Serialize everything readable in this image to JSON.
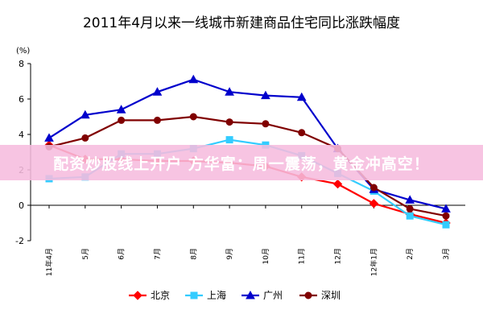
{
  "chart_data": {
    "type": "line",
    "title": "2011年4月以来一线城市新建商品住宅同比涨跌幅度",
    "unit_label": "(%)",
    "categories": [
      "11年4月",
      "5月",
      "6月",
      "7月",
      "8月",
      "9月",
      "10月",
      "11月",
      "12月",
      "12年1月",
      "2月",
      "3月"
    ],
    "ylim": [
      -2,
      8
    ],
    "yticks": [
      -2,
      0,
      2,
      4,
      6,
      8
    ],
    "grid": false,
    "legend_position": "bottom",
    "series": [
      {
        "name": "北京",
        "color": "#ff0000",
        "marker": "diamond",
        "values": [
          3.4,
          2.6,
          2.6,
          2.5,
          2.5,
          2.4,
          2.2,
          1.6,
          1.2,
          0.1,
          -0.5,
          -1.0
        ]
      },
      {
        "name": "上海",
        "color": "#33ccff",
        "marker": "square",
        "values": [
          1.5,
          1.6,
          2.9,
          2.9,
          3.2,
          3.7,
          3.4,
          2.8,
          1.8,
          0.8,
          -0.6,
          -1.1
        ]
      },
      {
        "name": "广州",
        "color": "#0000cc",
        "marker": "triangle",
        "values": [
          3.8,
          5.1,
          5.4,
          6.4,
          7.1,
          6.4,
          6.2,
          6.1,
          3.2,
          0.9,
          0.3,
          -0.2
        ]
      },
      {
        "name": "深圳",
        "color": "#800000",
        "marker": "circle",
        "values": [
          3.3,
          3.8,
          4.8,
          4.8,
          5.0,
          4.7,
          4.6,
          4.1,
          3.2,
          1.0,
          -0.2,
          -0.6
        ]
      }
    ]
  },
  "overlay": {
    "text": "配资炒股线上开户 方华富：周一震荡，黄金冲高空！"
  }
}
